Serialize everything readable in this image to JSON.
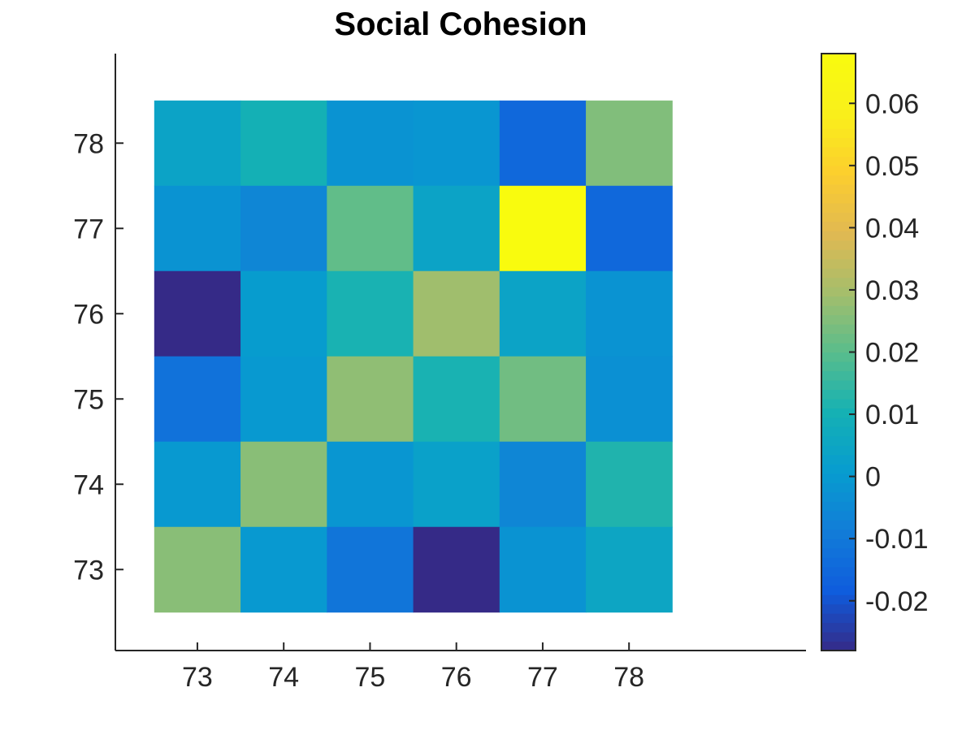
{
  "chart_data": {
    "type": "heatmap",
    "title": "Social Cohesion",
    "xlabel": "",
    "ylabel": "",
    "x_categories": [
      "73",
      "74",
      "75",
      "76",
      "77",
      "78"
    ],
    "y_categories": [
      "73",
      "74",
      "75",
      "76",
      "77",
      "78"
    ],
    "xlim": [
      72.05,
      80.05
    ],
    "ylim": [
      72.05,
      79.05
    ],
    "grid": false,
    "colormap": "parula",
    "colorbar": {
      "range": [
        -0.028,
        0.068
      ],
      "ticks": [
        -0.02,
        -0.01,
        0,
        0.01,
        0.02,
        0.03,
        0.04,
        0.05,
        0.06
      ],
      "tick_labels": [
        "-0.02",
        "-0.01",
        "0",
        "0.01",
        "0.02",
        "0.03",
        "0.04",
        "0.05",
        "0.06"
      ],
      "placement": "right"
    },
    "values_rows_top_to_bottom": [
      [
        0.004,
        0.01,
        -0.002,
        -0.001,
        -0.015,
        0.025
      ],
      [
        -0.002,
        -0.006,
        0.021,
        0.004,
        0.068,
        -0.015
      ],
      [
        -0.028,
        0.001,
        0.011,
        0.029,
        0.004,
        -0.002
      ],
      [
        -0.012,
        0.0,
        0.027,
        0.011,
        0.023,
        -0.003
      ],
      [
        0.0,
        0.026,
        -0.001,
        0.003,
        -0.006,
        0.012
      ],
      [
        0.026,
        0.0,
        -0.011,
        -0.028,
        -0.002,
        0.005
      ]
    ]
  }
}
